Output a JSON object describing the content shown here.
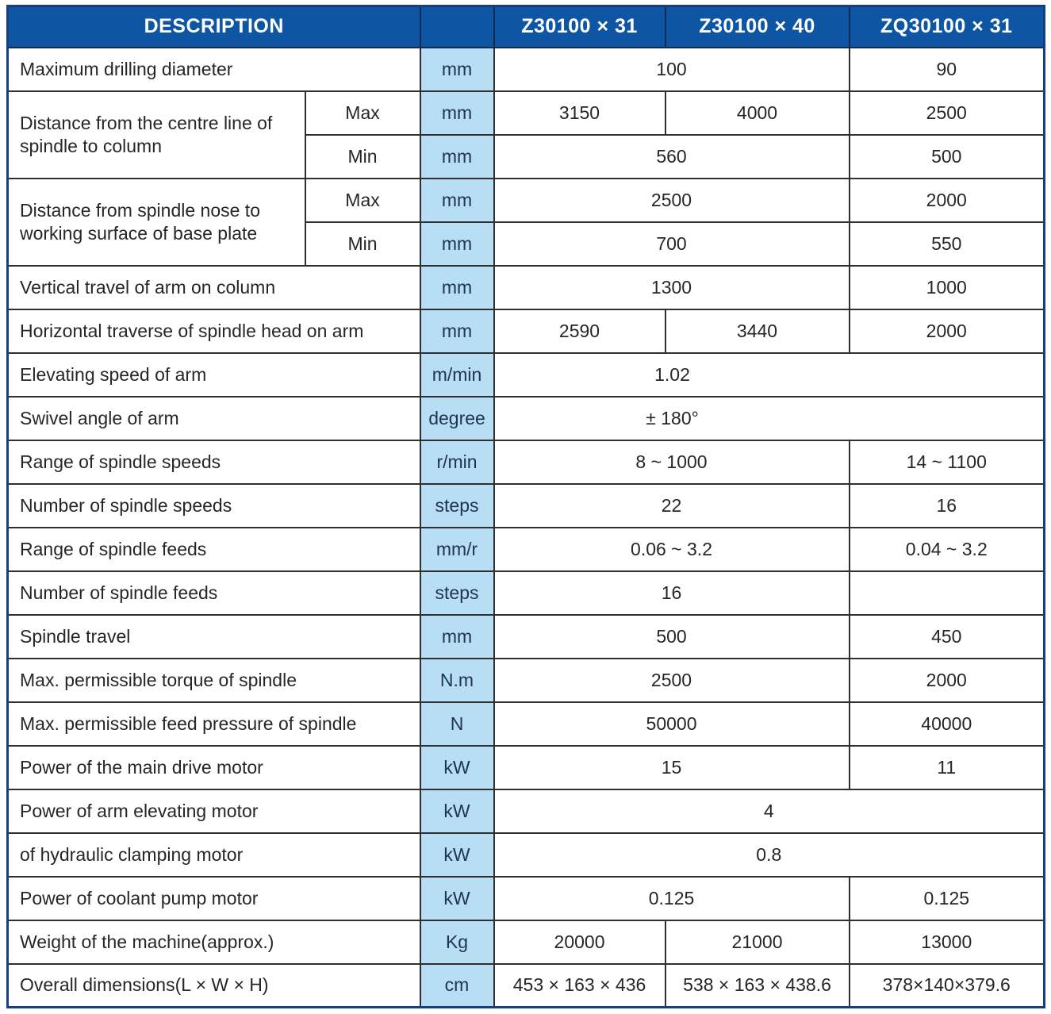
{
  "header": {
    "description_label": "DESCRIPTION",
    "units_label": "",
    "models": [
      "Z30100 × 31",
      "Z30100 × 40",
      "ZQ30100 × 31"
    ]
  },
  "colors": {
    "header_bg": "#0e56a3",
    "header_text": "#ffffff",
    "units_bg": "#b7def4",
    "grid_border": "#2f2f2f",
    "outer_border": "#153f7d",
    "body_text": "#262626"
  },
  "rows": {
    "max_drilling_diameter": {
      "label": "Maximum drilling diameter",
      "unit": "mm",
      "values": [
        "100",
        "90"
      ]
    },
    "centre_line_group": {
      "label": "Distance from the centre line of spindle to column"
    },
    "centre_line_max": {
      "sub": "Max",
      "unit": "mm",
      "values": [
        "3150",
        "4000",
        "2500"
      ]
    },
    "centre_line_min": {
      "sub": "Min",
      "unit": "mm",
      "values": [
        "560",
        "500"
      ]
    },
    "spindle_nose_group": {
      "label": "Distance from spindle nose to working surface of base plate"
    },
    "spindle_nose_max": {
      "sub": "Max",
      "unit": "mm",
      "values": [
        "2500",
        "2000"
      ]
    },
    "spindle_nose_min": {
      "sub": "Min",
      "unit": "mm",
      "values": [
        "700",
        "550"
      ]
    },
    "vertical_travel": {
      "label": "Vertical travel of arm on column",
      "unit": "mm",
      "values": [
        "1300",
        "1000"
      ]
    },
    "horizontal_traverse": {
      "label": "Horizontal traverse of spindle head on arm",
      "unit": "mm",
      "values": [
        "2590",
        "3440",
        "2000"
      ]
    },
    "elevating_speed": {
      "label": "Elevating speed of arm",
      "unit": "m/min",
      "values": [
        "1.02"
      ]
    },
    "swivel_angle": {
      "label": "Swivel angle of arm",
      "unit": "degree",
      "values": [
        "± 180°"
      ]
    },
    "range_spindle_speeds": {
      "label": "Range of spindle speeds",
      "unit": "r/min",
      "values": [
        "8 ~ 1000",
        "14 ~ 1100"
      ]
    },
    "number_spindle_speeds": {
      "label": "Number of spindle speeds",
      "unit": "steps",
      "values": [
        "22",
        "16"
      ]
    },
    "range_spindle_feeds": {
      "label": "Range of spindle feeds",
      "unit": "mm/r",
      "values": [
        "0.06 ~ 3.2",
        "0.04 ~ 3.2"
      ]
    },
    "number_spindle_feeds": {
      "label": "Number of spindle feeds",
      "unit": "steps",
      "values": [
        "16",
        ""
      ]
    },
    "spindle_travel": {
      "label": "Spindle travel",
      "unit": "mm",
      "values": [
        "500",
        "450"
      ]
    },
    "max_torque": {
      "label": "Max. permissible torque of spindle",
      "unit": "N.m",
      "values": [
        "2500",
        "2000"
      ]
    },
    "max_feed_pressure": {
      "label": "Max. permissible feed pressure of spindle",
      "unit": "N",
      "values": [
        "50000",
        "40000"
      ]
    },
    "main_drive_motor": {
      "label": "Power of the main drive motor",
      "unit": "kW",
      "values": [
        "15",
        "11"
      ]
    },
    "arm_elevating_motor": {
      "label": "Power of arm elevating  motor",
      "unit": "kW",
      "values": [
        "4"
      ]
    },
    "hydraulic_clamping_motor": {
      "label": "of hydraulic clamping motor",
      "unit": "kW",
      "values": [
        "0.8"
      ]
    },
    "coolant_pump_motor": {
      "label": "Power of coolant pump motor",
      "unit": "kW",
      "values": [
        "0.125",
        "0.125"
      ]
    },
    "machine_weight": {
      "label": "Weight of the machine(approx.)",
      "unit": "Kg",
      "values": [
        "20000",
        "21000",
        "13000"
      ]
    },
    "overall_dimensions": {
      "label": "Overall dimensions(L × W × H)",
      "unit": "cm",
      "values": [
        "453 × 163 × 436",
        "538 × 163 × 438.6",
        "378×140×379.6"
      ]
    }
  }
}
